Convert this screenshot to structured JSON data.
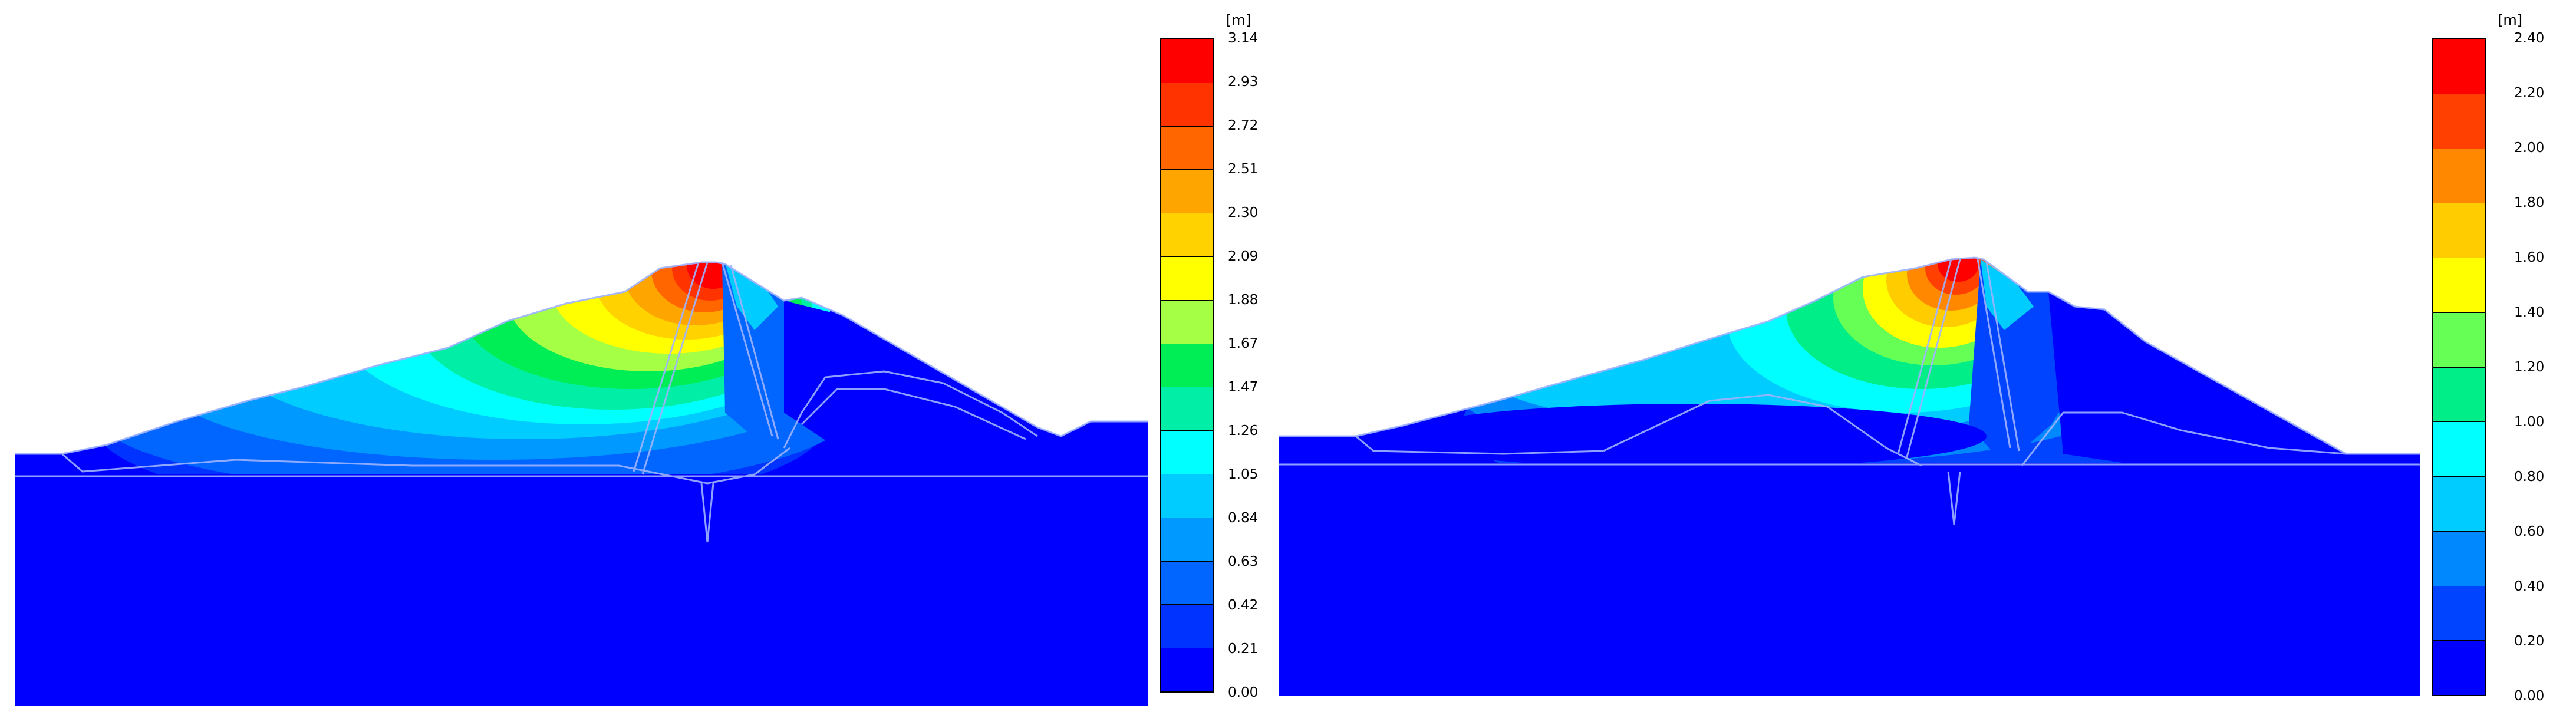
{
  "panels": [
    {
      "id": "left",
      "legend": {
        "unit": "[m]",
        "ticks": [
          "3.14",
          "2.93",
          "2.72",
          "2.51",
          "2.30",
          "2.09",
          "1.88",
          "1.67",
          "1.47",
          "1.26",
          "1.05",
          "0.84",
          "0.63",
          "0.42",
          "0.21",
          "0.00"
        ],
        "colors": [
          "#ff0000",
          "#ff3300",
          "#ff6600",
          "#ffa500",
          "#ffd200",
          "#ffff00",
          "#a5ff45",
          "#00ee55",
          "#00eea5",
          "#00ffff",
          "#00ccff",
          "#0099ff",
          "#0066ff",
          "#0033ff",
          "#0000ff"
        ]
      }
    },
    {
      "id": "right",
      "legend": {
        "unit": "[m]",
        "ticks": [
          "2.40",
          "2.20",
          "2.00",
          "1.80",
          "1.60",
          "1.40",
          "1.20",
          "1.00",
          "0.80",
          "0.60",
          "0.40",
          "0.20",
          "0.00"
        ],
        "colors": [
          "#ff0000",
          "#ff4000",
          "#ff8800",
          "#ffcc00",
          "#ffff00",
          "#66ff55",
          "#00ee88",
          "#00ffff",
          "#00ccff",
          "#0088ff",
          "#0044ff",
          "#0000ff"
        ]
      }
    }
  ]
}
